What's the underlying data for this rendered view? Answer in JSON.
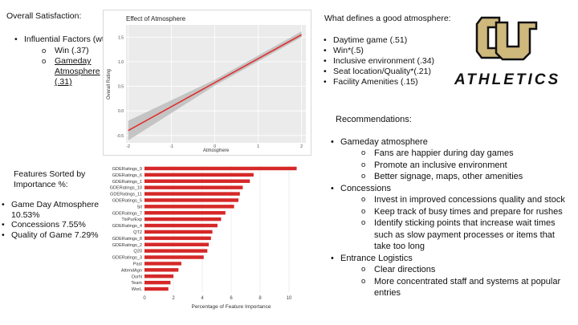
{
  "satisfaction": {
    "heading": "Overall Satisfaction:",
    "factors_label": "Influential Factors (wt.)",
    "win": "Win (.37)",
    "gameday_lines": [
      "Gameday",
      "Atmosphere",
      "(.31)"
    ]
  },
  "features_heading": [
    "Features Sorted by",
    "Importance %:"
  ],
  "features_list": [
    "Game Day Atmosphere",
    "10.53%",
    "Concessions 7.55%",
    "Quality of Game 7.29%"
  ],
  "atmosphere": {
    "heading": "What defines a good atmosphere:",
    "items": [
      "Daytime game (.51)",
      "Win*(.5)",
      "Inclusive environment (.34)",
      "Seat location/Quality*(.21)",
      "Facility Amenities (.15)"
    ]
  },
  "logo": {
    "monogram": "CU",
    "wordmark": "ATHLETICS",
    "color": "#CFB87C"
  },
  "recommendations": {
    "heading": "Recommendations:",
    "gameday": {
      "title": "Gameday atmosphere",
      "items": [
        "Fans are happier during day games",
        "Promote an inclusive environment",
        "Better signage, maps, other amenities"
      ]
    },
    "concessions": {
      "title": "Concessions",
      "items": [
        "Invest in improved concessions quality and stock",
        "Keep track of busy times and prepare for rushes",
        "Identify sticking points that increase wait times",
        "such as slow payment processes or items that",
        "take too long"
      ]
    },
    "entrance": {
      "title": "Entrance Logistics",
      "items": [
        "Clear directions",
        "More concentrated staff and systems at popular",
        "entries"
      ]
    }
  },
  "chart_data": [
    {
      "type": "line",
      "title": "Effect of Atmosphere",
      "xlabel": "Atmosphere",
      "ylabel": "Overall Rating",
      "x": [
        -2,
        2
      ],
      "y": [
        -0.4,
        1.55
      ],
      "band_low": [
        -0.6,
        1.5
      ],
      "band_high": [
        -0.2,
        1.62
      ],
      "xlim": [
        -2.05,
        2.1
      ],
      "ylim": [
        -0.65,
        1.75
      ],
      "xticks": [
        "-2",
        "-1",
        "0",
        "1",
        "2"
      ],
      "yticks": [
        "-0.5",
        "0.0",
        "0.5",
        "1.0",
        "1.5"
      ],
      "line_color": "#e03030",
      "band_color": "#bdbdbd",
      "panel_color": "#ebebeb",
      "grid": true
    },
    {
      "type": "bar",
      "orientation": "horizontal",
      "xlabel": "Percentage of Feature Importance",
      "categories": [
        "GDERatings_9",
        "GDERatings_6",
        "GDERatings_1",
        "GDERatings_10",
        "GDERatings_11",
        "GDERatings_5",
        "Sit",
        "GDERatings_7",
        "TixPurExp",
        "GDERatings_4",
        "QT2",
        "GDERatings_8",
        "GDERatings_2",
        "Q20",
        "GDERatings_3",
        "Past",
        "AttendAgn",
        "DorN",
        "Team",
        "WorL"
      ],
      "values": [
        10.53,
        7.55,
        7.29,
        6.8,
        6.6,
        6.5,
        6.2,
        5.6,
        5.3,
        5.05,
        4.7,
        4.6,
        4.45,
        4.35,
        4.1,
        2.55,
        2.35,
        2.0,
        1.8,
        1.65
      ],
      "xticks": [
        0,
        2,
        4,
        6,
        8,
        10
      ],
      "xlim": [
        0,
        11
      ],
      "bar_color": "#d62828",
      "grid": true
    }
  ]
}
